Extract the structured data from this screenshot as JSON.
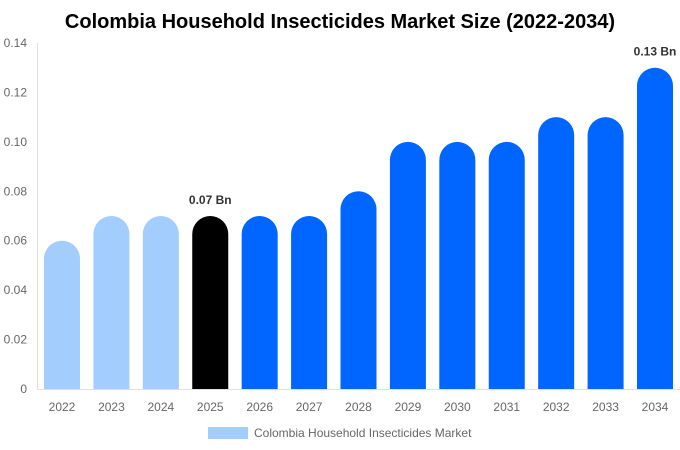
{
  "chart_data": {
    "type": "bar",
    "title": "Colombia Household Insecticides Market Size (2022-2034)",
    "categories": [
      "2022",
      "2023",
      "2024",
      "2025",
      "2026",
      "2027",
      "2028",
      "2029",
      "2030",
      "2031",
      "2032",
      "2033",
      "2034"
    ],
    "series": [
      {
        "name": "Colombia Household Insecticides Market",
        "values": [
          0.06,
          0.07,
          0.07,
          0.07,
          0.07,
          0.07,
          0.08,
          0.1,
          0.1,
          0.1,
          0.11,
          0.11,
          0.13
        ]
      }
    ],
    "bar_colors": [
      "#a3cdfd",
      "#a3cdfd",
      "#a3cdfd",
      "#000000",
      "#0066ff",
      "#0066ff",
      "#0066ff",
      "#0066ff",
      "#0066ff",
      "#0066ff",
      "#0066ff",
      "#0066ff",
      "#0066ff"
    ],
    "data_labels": [
      {
        "category": "2025",
        "text": "0.07 Bn"
      },
      {
        "category": "2034",
        "text": "0.13 Bn"
      }
    ],
    "yticks": [
      "0",
      "0.02",
      "0.04",
      "0.06",
      "0.08",
      "0.10",
      "0.12",
      "0.14"
    ],
    "ylim": [
      0,
      0.14
    ],
    "xlabel": "",
    "ylabel": "",
    "grid": false,
    "legend_position": "bottom",
    "legend_color": "#a3cdfd"
  }
}
